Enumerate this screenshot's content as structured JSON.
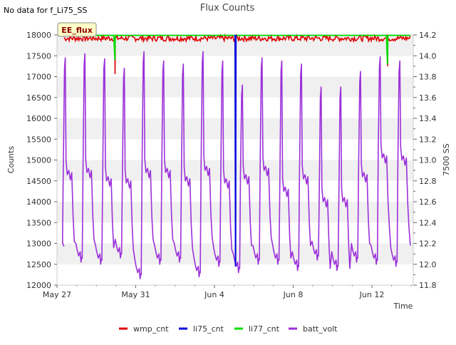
{
  "no_data_note": "No data for f_Li75_SS",
  "site_badge": "EE_flux",
  "chart_data": {
    "type": "line",
    "title": "Flux Counts",
    "xlabel": "Time",
    "ylabel": "Counts",
    "y2label": "7500 SS",
    "xlim": [
      0,
      18.1
    ],
    "ylim": [
      12000,
      18000
    ],
    "y2lim": [
      11.8,
      14.2
    ],
    "x_ticks": [
      {
        "x": 0,
        "label": "May 27"
      },
      {
        "x": 4,
        "label": "May 31"
      },
      {
        "x": 8,
        "label": "Jun 4"
      },
      {
        "x": 12,
        "label": "Jun 8"
      },
      {
        "x": 16,
        "label": "Jun 12"
      }
    ],
    "y_ticks": [
      12000,
      12500,
      13000,
      13500,
      14000,
      14500,
      15000,
      15500,
      16000,
      16500,
      17000,
      17500,
      18000
    ],
    "y_tick_labels": [
      "12000",
      "12500",
      "13000",
      "13500",
      "14000",
      "14500",
      "15000",
      "15500",
      "16000",
      "16500",
      "17000",
      "17500",
      "18000"
    ],
    "y2_ticks": [
      11.8,
      12.0,
      12.2,
      12.4,
      12.6,
      12.8,
      13.0,
      13.2,
      13.4,
      13.6,
      13.8,
      14.0,
      14.2
    ],
    "y2_tick_labels": [
      "11.8",
      "12.0",
      "12.2",
      "12.4",
      "12.6",
      "12.8",
      "13.0",
      "13.2",
      "13.4",
      "13.6",
      "13.8",
      "14.0",
      "14.2"
    ],
    "series": [
      {
        "name": "wmp_cnt",
        "color": "#dd0000",
        "axis": "left",
        "typical_range": [
          17850,
          17990
        ],
        "dips": [
          {
            "x": 2.95,
            "y": 17060
          },
          {
            "x": 16.8,
            "y": 17250
          }
        ]
      },
      {
        "name": "li75_cnt",
        "color": "#0000dd",
        "axis": "left",
        "points": [
          [
            9.05,
            18000
          ],
          [
            9.07,
            12450
          ],
          [
            9.09,
            18000
          ]
        ]
      },
      {
        "name": "li77_cnt",
        "color": "#00dd00",
        "axis": "left",
        "baseline": 17990,
        "spikes": [
          {
            "x": 2.9,
            "y": 17400
          },
          {
            "x": 16.75,
            "y": 17300
          }
        ]
      },
      {
        "name": "batt_volt",
        "color": "#9b30d9",
        "axis": "right",
        "days": [
          {
            "start": 0.3,
            "peak": 13.98,
            "plateau": 12.84,
            "min": 12.02
          },
          {
            "start": 1.3,
            "peak": 14.02,
            "plateau": 12.86,
            "min": 12.0
          },
          {
            "start": 2.3,
            "peak": 13.97,
            "plateau": 12.78,
            "min": 12.06
          },
          {
            "start": 3.3,
            "peak": 13.88,
            "plateau": 12.76,
            "min": 11.86
          },
          {
            "start": 4.3,
            "peak": 14.04,
            "plateau": 12.86,
            "min": 12.0
          },
          {
            "start": 5.3,
            "peak": 13.95,
            "plateau": 12.86,
            "min": 12.02
          },
          {
            "start": 6.3,
            "peak": 13.92,
            "plateau": 12.78,
            "min": 11.88
          },
          {
            "start": 7.3,
            "peak": 14.04,
            "plateau": 12.88,
            "min": 11.98
          },
          {
            "start": 8.3,
            "peak": 13.95,
            "plateau": 12.76,
            "min": 11.92
          },
          {
            "start": 9.3,
            "peak": 13.72,
            "plateau": 12.8,
            "min": 12.0
          },
          {
            "start": 10.3,
            "peak": 13.98,
            "plateau": 12.88,
            "min": 12.0
          },
          {
            "start": 11.3,
            "peak": 13.95,
            "plateau": 12.68,
            "min": 11.94
          },
          {
            "start": 12.3,
            "peak": 13.92,
            "plateau": 12.8,
            "min": 12.04
          },
          {
            "start": 13.3,
            "peak": 13.7,
            "plateau": 12.58,
            "min": 11.94
          },
          {
            "start": 14.3,
            "peak": 13.7,
            "plateau": 12.58,
            "min": 12.02
          },
          {
            "start": 15.3,
            "peak": 13.85,
            "plateau": 12.82,
            "min": 12.0
          },
          {
            "start": 16.3,
            "peak": 13.99,
            "plateau": 13.0,
            "min": 11.98
          },
          {
            "start": 17.3,
            "peak": 13.95,
            "plateau": 12.98,
            "min": 12.0
          }
        ],
        "start_value": 12.17,
        "end_value": 12.18,
        "x_range": [
          0.35,
          17.95
        ]
      }
    ],
    "legend_position": "bottom-center",
    "grid": "alternating horizontal bands"
  }
}
